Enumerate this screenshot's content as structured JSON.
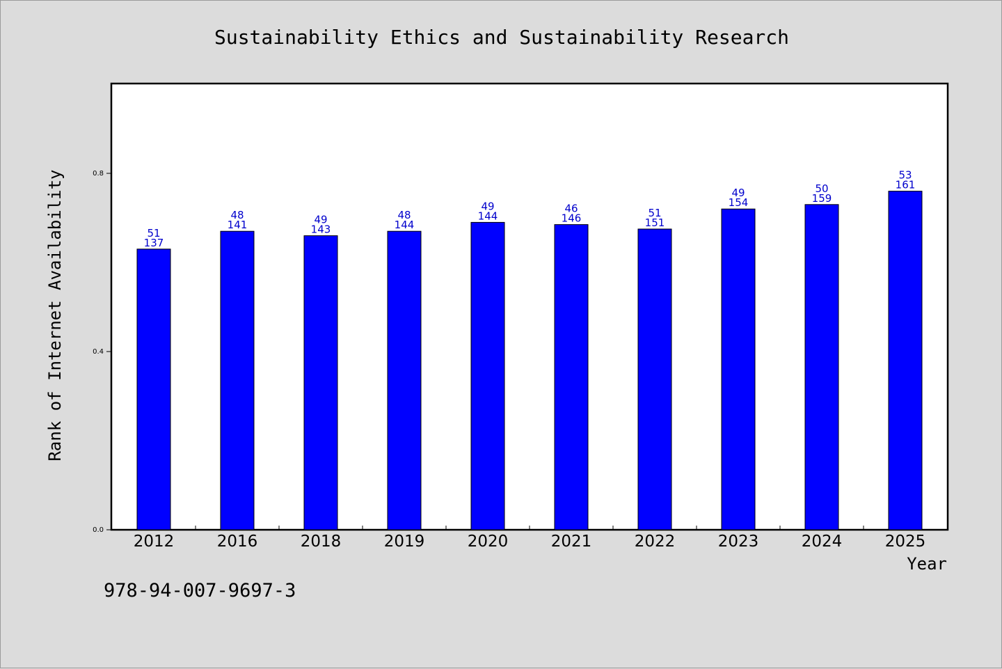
{
  "footer": {
    "isbn": "978-94-007-9697-3"
  },
  "colors": {
    "bar": "#0000ff",
    "bar_label": "#0000cc",
    "background": "#dcdcdc",
    "plot_background": "#ffffff"
  },
  "chart_data": {
    "type": "bar",
    "title": "Sustainability Ethics and Sustainability Research",
    "xlabel": "Year",
    "ylabel": "Rank of Internet Availability",
    "categories": [
      "2012",
      "2016",
      "2018",
      "2019",
      "2020",
      "2021",
      "2022",
      "2023",
      "2024",
      "2025"
    ],
    "values": [
      0.63,
      0.67,
      0.66,
      0.67,
      0.69,
      0.685,
      0.675,
      0.72,
      0.73,
      0.76
    ],
    "labels_top": [
      "51",
      "48",
      "49",
      "48",
      "49",
      "46",
      "51",
      "49",
      "50",
      "53"
    ],
    "labels_bottom": [
      "137",
      "141",
      "143",
      "144",
      "144",
      "146",
      "151",
      "154",
      "159",
      "161"
    ],
    "ylim": [
      0,
      1.0
    ],
    "yticks": [
      0.0,
      0.4,
      0.8
    ],
    "ytick_labels": [
      "0.0",
      "0.4",
      "0.8"
    ],
    "grid": false,
    "legend": "none"
  }
}
